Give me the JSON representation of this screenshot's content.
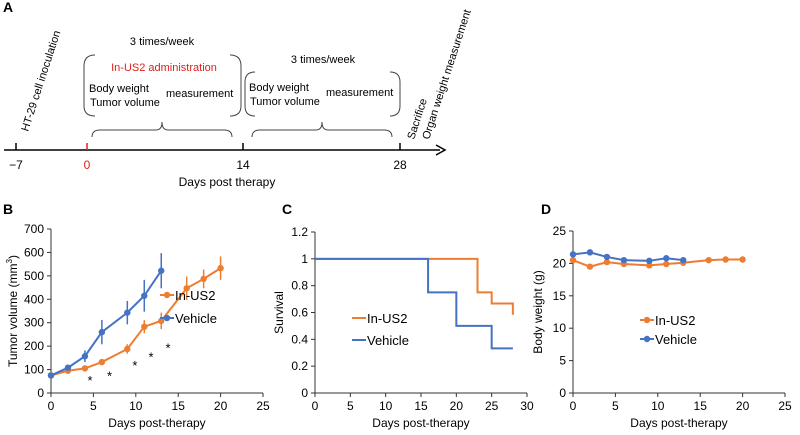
{
  "colors": {
    "orange": "#ED7D31",
    "blue": "#4472C4",
    "red": "#E0201B"
  },
  "panel_a": {
    "label": "A",
    "xlabel": "Days post therapy",
    "ticks": [
      "−7",
      "0",
      "14",
      "28"
    ],
    "inoculation": "HT-29 cell inoculation",
    "freq1": "3 times/week",
    "freq2": "3 times/week",
    "administration": "In-US2 administration",
    "body_weight": "Body weight",
    "tumor_volume": "Tumor volume",
    "measurement": "measurement",
    "body_weight2": "Body weight",
    "tumor_volume2": "Tumor volume",
    "measurement2": "measurement",
    "sacrifice": "Sacrifice",
    "organ": "Organ weight measurement"
  },
  "chart_data": [
    {
      "panel": "B",
      "type": "line",
      "xlabel": "Days post-therapy",
      "ylabel": "Tumor volume (mm",
      "ylabel_sup": "3",
      "ylabel_end": ")",
      "xlim": [
        0,
        25
      ],
      "ylim": [
        0,
        700
      ],
      "xticks": [
        "0",
        "5",
        "10",
        "15",
        "20",
        "25"
      ],
      "yticks": [
        "0",
        "100",
        "200",
        "300",
        "400",
        "500",
        "600",
        "700"
      ],
      "legend": "right",
      "series": [
        {
          "name": "In-US2",
          "color": "#ED7D31",
          "x": [
            0,
            2,
            4,
            6,
            9,
            11,
            13,
            16,
            18,
            20
          ],
          "y": [
            75,
            95,
            105,
            132,
            188,
            283,
            308,
            447,
            487,
            533
          ],
          "err": [
            10,
            12,
            10,
            8,
            20,
            28,
            35,
            50,
            40,
            50
          ]
        },
        {
          "name": "Vehicle",
          "color": "#4472C4",
          "x": [
            0,
            2,
            4,
            6,
            9,
            11,
            13
          ],
          "y": [
            75,
            108,
            157,
            260,
            343,
            415,
            522
          ],
          "err": [
            10,
            12,
            25,
            52,
            50,
            68,
            75
          ]
        }
      ],
      "annotations": [
        {
          "text": "*",
          "x": 4.6,
          "y": 55
        },
        {
          "text": "*",
          "x": 6.9,
          "y": 75
        },
        {
          "text": "*",
          "x": 9.9,
          "y": 120
        },
        {
          "text": "*",
          "x": 11.8,
          "y": 155
        },
        {
          "text": "*",
          "x": 13.8,
          "y": 195
        }
      ]
    },
    {
      "panel": "C",
      "type": "line",
      "xlabel": "Days post-therapy",
      "ylabel": "Survival",
      "xlim": [
        0,
        30
      ],
      "ylim": [
        0,
        1.2
      ],
      "xticks": [
        "0",
        "5",
        "10",
        "15",
        "20",
        "25",
        "30"
      ],
      "yticks": [
        "0",
        "0.2",
        "0.4",
        "0.6",
        "0.8",
        "1",
        "1.2"
      ],
      "legend": "center-left",
      "series": [
        {
          "name": "In-US2",
          "color": "#ED7D31",
          "step": true,
          "x": [
            0,
            23,
            25,
            28,
            28
          ],
          "y": [
            1,
            0.75,
            0.667,
            0.667,
            0.583
          ]
        },
        {
          "name": "Vehicle",
          "color": "#4472C4",
          "step": true,
          "x": [
            0,
            16,
            20,
            25,
            28
          ],
          "y": [
            1,
            0.75,
            0.5,
            0.333,
            0.333
          ]
        }
      ]
    },
    {
      "panel": "D",
      "type": "line",
      "xlabel": "Days post-therapy",
      "ylabel": "Body weight (g)",
      "xlim": [
        0,
        25
      ],
      "ylim": [
        0,
        25
      ],
      "xticks": [
        "0",
        "5",
        "10",
        "15",
        "20",
        "25"
      ],
      "yticks": [
        "0",
        "5",
        "10",
        "15",
        "20",
        "25"
      ],
      "legend": "center",
      "series": [
        {
          "name": "In-US2",
          "color": "#ED7D31",
          "x": [
            0,
            2,
            4,
            6,
            9,
            11,
            13,
            16,
            18,
            20
          ],
          "y": [
            20.5,
            19.5,
            20.2,
            19.9,
            19.7,
            19.9,
            20.1,
            20.5,
            20.6,
            20.6
          ]
        },
        {
          "name": "Vehicle",
          "color": "#4472C4",
          "x": [
            0,
            2,
            4,
            6,
            9,
            11,
            13
          ],
          "y": [
            21.4,
            21.7,
            21.0,
            20.5,
            20.4,
            20.8,
            20.5
          ]
        }
      ]
    }
  ]
}
